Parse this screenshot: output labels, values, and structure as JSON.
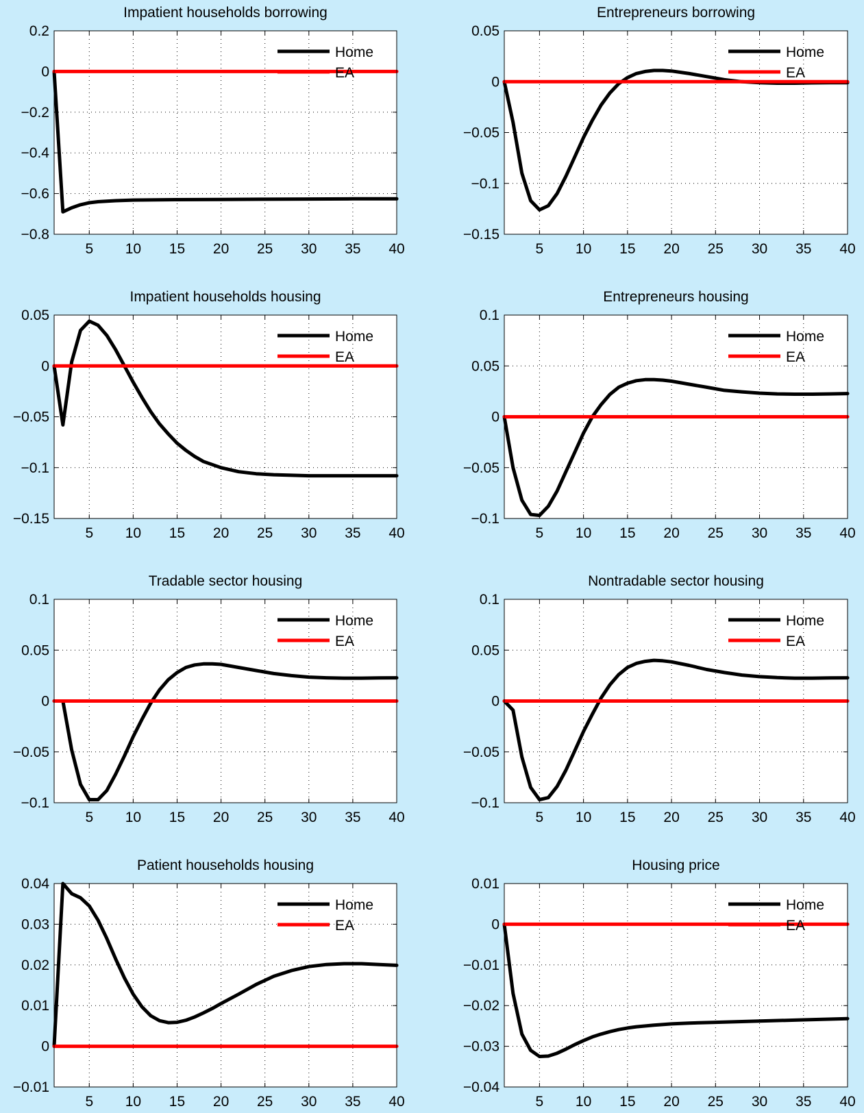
{
  "figure": {
    "background": "#c9ecfb",
    "home_color": "#000000",
    "ea_color": "#ff0000"
  },
  "chart_data": [
    {
      "type": "line",
      "title": "Impatient households borrowing",
      "xlim": [
        1,
        40
      ],
      "ylim": [
        -0.8,
        0.2
      ],
      "xticks": [
        5,
        10,
        15,
        20,
        25,
        30,
        35,
        40
      ],
      "xtick_labels": [
        "5",
        "10",
        "15",
        "20",
        "25",
        "30",
        "35",
        "40"
      ],
      "yticks": [
        -0.8,
        -0.6,
        -0.4,
        -0.2,
        0,
        0.2
      ],
      "ytick_labels": [
        "−0.8",
        "−0.6",
        "−0.4",
        "−0.2",
        "0",
        "0.2"
      ],
      "grid": true,
      "legend": "top-right",
      "series": [
        {
          "name": "Home",
          "color": "#000000",
          "x": [
            1,
            2,
            3,
            4,
            5,
            6,
            8,
            10,
            15,
            20,
            25,
            30,
            35,
            40
          ],
          "y": [
            0,
            -0.69,
            -0.67,
            -0.655,
            -0.645,
            -0.64,
            -0.635,
            -0.632,
            -0.63,
            -0.629,
            -0.628,
            -0.627,
            -0.626,
            -0.626
          ]
        },
        {
          "name": "EA",
          "color": "#ff0000",
          "x": [
            1,
            40
          ],
          "y": [
            0,
            0
          ]
        }
      ]
    },
    {
      "type": "line",
      "title": "Entrepreneurs borrowing",
      "xlim": [
        1,
        40
      ],
      "ylim": [
        -0.15,
        0.05
      ],
      "xticks": [
        5,
        10,
        15,
        20,
        25,
        30,
        35,
        40
      ],
      "xtick_labels": [
        "5",
        "10",
        "15",
        "20",
        "25",
        "30",
        "35",
        "40"
      ],
      "yticks": [
        -0.15,
        -0.1,
        -0.05,
        0,
        0.05
      ],
      "ytick_labels": [
        "−0.15",
        "−0.1",
        "−0.05",
        "0",
        "0.05"
      ],
      "grid": true,
      "legend": "top-right",
      "series": [
        {
          "name": "Home",
          "color": "#000000",
          "x": [
            1,
            2,
            3,
            4,
            5,
            6,
            7,
            8,
            9,
            10,
            11,
            12,
            13,
            14,
            15,
            16,
            17,
            18,
            19,
            20,
            22,
            24,
            26,
            28,
            30,
            32,
            34,
            36,
            38,
            40
          ],
          "y": [
            0,
            -0.04,
            -0.09,
            -0.117,
            -0.126,
            -0.122,
            -0.11,
            -0.093,
            -0.074,
            -0.055,
            -0.038,
            -0.023,
            -0.011,
            -0.002,
            0.004,
            0.008,
            0.01,
            0.011,
            0.011,
            0.0105,
            0.008,
            0.005,
            0.002,
            0.0,
            -0.001,
            -0.0015,
            -0.0015,
            -0.0012,
            -0.001,
            -0.001
          ]
        },
        {
          "name": "EA",
          "color": "#ff0000",
          "x": [
            1,
            40
          ],
          "y": [
            0,
            0
          ]
        }
      ]
    },
    {
      "type": "line",
      "title": "Impatient households housing",
      "xlim": [
        1,
        40
      ],
      "ylim": [
        -0.15,
        0.05
      ],
      "xticks": [
        5,
        10,
        15,
        20,
        25,
        30,
        35,
        40
      ],
      "xtick_labels": [
        "5",
        "10",
        "15",
        "20",
        "25",
        "30",
        "35",
        "40"
      ],
      "yticks": [
        -0.15,
        -0.1,
        -0.05,
        0,
        0.05
      ],
      "ytick_labels": [
        "−0.15",
        "−0.1",
        "−0.05",
        "0",
        "0.05"
      ],
      "grid": true,
      "legend": "top-right",
      "series": [
        {
          "name": "Home",
          "color": "#000000",
          "x": [
            1,
            2,
            3,
            4,
            5,
            6,
            7,
            8,
            9,
            10,
            11,
            12,
            13,
            14,
            15,
            16,
            17,
            18,
            19,
            20,
            22,
            24,
            26,
            28,
            30,
            32,
            34,
            36,
            38,
            40
          ],
          "y": [
            0,
            -0.058,
            0.004,
            0.035,
            0.044,
            0.04,
            0.03,
            0.016,
            0.0,
            -0.016,
            -0.031,
            -0.045,
            -0.057,
            -0.067,
            -0.076,
            -0.083,
            -0.089,
            -0.094,
            -0.097,
            -0.1,
            -0.104,
            -0.106,
            -0.107,
            -0.1075,
            -0.108,
            -0.108,
            -0.108,
            -0.108,
            -0.108,
            -0.108
          ]
        },
        {
          "name": "EA",
          "color": "#ff0000",
          "x": [
            1,
            40
          ],
          "y": [
            0,
            0
          ]
        }
      ]
    },
    {
      "type": "line",
      "title": "Entrepreneurs housing",
      "xlim": [
        1,
        40
      ],
      "ylim": [
        -0.1,
        0.1
      ],
      "xticks": [
        5,
        10,
        15,
        20,
        25,
        30,
        35,
        40
      ],
      "xtick_labels": [
        "5",
        "10",
        "15",
        "20",
        "25",
        "30",
        "35",
        "40"
      ],
      "yticks": [
        -0.1,
        -0.05,
        0,
        0.05,
        0.1
      ],
      "ytick_labels": [
        "−0.1",
        "−0.05",
        "0",
        "0.05",
        "0.1"
      ],
      "grid": true,
      "legend": "top-right",
      "series": [
        {
          "name": "Home",
          "color": "#000000",
          "x": [
            1,
            2,
            3,
            4,
            5,
            6,
            7,
            8,
            9,
            10,
            11,
            12,
            13,
            14,
            15,
            16,
            17,
            18,
            19,
            20,
            22,
            24,
            26,
            28,
            30,
            32,
            34,
            36,
            38,
            40
          ],
          "y": [
            0,
            -0.05,
            -0.082,
            -0.096,
            -0.097,
            -0.088,
            -0.073,
            -0.054,
            -0.035,
            -0.016,
            0.0,
            0.012,
            0.022,
            0.029,
            0.033,
            0.0355,
            0.0365,
            0.0365,
            0.036,
            0.035,
            0.032,
            0.029,
            0.026,
            0.0245,
            0.0232,
            0.0225,
            0.0222,
            0.0222,
            0.0225,
            0.0228
          ]
        },
        {
          "name": "EA",
          "color": "#ff0000",
          "x": [
            1,
            40
          ],
          "y": [
            0,
            0
          ]
        }
      ]
    },
    {
      "type": "line",
      "title": "Tradable sector housing",
      "xlim": [
        1,
        40
      ],
      "ylim": [
        -0.1,
        0.1
      ],
      "xticks": [
        5,
        10,
        15,
        20,
        25,
        30,
        35,
        40
      ],
      "xtick_labels": [
        "5",
        "10",
        "15",
        "20",
        "25",
        "30",
        "35",
        "40"
      ],
      "yticks": [
        -0.1,
        -0.05,
        0,
        0.05,
        0.1
      ],
      "ytick_labels": [
        "−0.1",
        "−0.05",
        "0",
        "0.05",
        "0.1"
      ],
      "grid": true,
      "legend": "top-right",
      "series": [
        {
          "name": "Home",
          "color": "#000000",
          "x": [
            1,
            2,
            3,
            4,
            5,
            6,
            7,
            8,
            9,
            10,
            11,
            12,
            13,
            14,
            15,
            16,
            17,
            18,
            19,
            20,
            22,
            24,
            26,
            28,
            30,
            32,
            34,
            36,
            38,
            40
          ],
          "y": [
            0,
            0,
            -0.048,
            -0.082,
            -0.097,
            -0.097,
            -0.088,
            -0.072,
            -0.054,
            -0.035,
            -0.018,
            -0.002,
            0.011,
            0.021,
            0.028,
            0.033,
            0.0355,
            0.0365,
            0.0365,
            0.036,
            0.033,
            0.03,
            0.027,
            0.025,
            0.0235,
            0.0228,
            0.0225,
            0.0225,
            0.0227,
            0.0228
          ]
        },
        {
          "name": "EA",
          "color": "#ff0000",
          "x": [
            1,
            40
          ],
          "y": [
            0,
            0
          ]
        }
      ]
    },
    {
      "type": "line",
      "title": "Nontradable sector housing",
      "xlim": [
        1,
        40
      ],
      "ylim": [
        -0.1,
        0.1
      ],
      "xticks": [
        5,
        10,
        15,
        20,
        25,
        30,
        35,
        40
      ],
      "xtick_labels": [
        "5",
        "10",
        "15",
        "20",
        "25",
        "30",
        "35",
        "40"
      ],
      "yticks": [
        -0.1,
        -0.05,
        0,
        0.05,
        0.1
      ],
      "ytick_labels": [
        "−0.1",
        "−0.05",
        "0",
        "0.05",
        "0.1"
      ],
      "grid": true,
      "legend": "top-right",
      "series": [
        {
          "name": "Home",
          "color": "#000000",
          "x": [
            1,
            2,
            3,
            4,
            5,
            6,
            7,
            8,
            9,
            10,
            11,
            12,
            13,
            14,
            15,
            16,
            17,
            18,
            19,
            20,
            22,
            24,
            26,
            28,
            30,
            32,
            34,
            36,
            38,
            40
          ],
          "y": [
            0,
            -0.009,
            -0.055,
            -0.085,
            -0.097,
            -0.095,
            -0.084,
            -0.068,
            -0.049,
            -0.03,
            -0.013,
            0.003,
            0.016,
            0.026,
            0.033,
            0.037,
            0.039,
            0.04,
            0.0395,
            0.0385,
            0.035,
            0.031,
            0.028,
            0.0255,
            0.024,
            0.023,
            0.0225,
            0.0225,
            0.0227,
            0.0228
          ]
        },
        {
          "name": "EA",
          "color": "#ff0000",
          "x": [
            1,
            40
          ],
          "y": [
            0,
            0
          ]
        }
      ]
    },
    {
      "type": "line",
      "title": "Patient households housing",
      "xlim": [
        1,
        40
      ],
      "ylim": [
        -0.01,
        0.04
      ],
      "xticks": [
        5,
        10,
        15,
        20,
        25,
        30,
        35,
        40
      ],
      "xtick_labels": [
        "5",
        "10",
        "15",
        "20",
        "25",
        "30",
        "35",
        "40"
      ],
      "yticks": [
        -0.01,
        0,
        0.01,
        0.02,
        0.03,
        0.04
      ],
      "ytick_labels": [
        "−0.01",
        "0",
        "0.01",
        "0.02",
        "0.03",
        "0.04"
      ],
      "grid": true,
      "legend": "top-right",
      "series": [
        {
          "name": "Home",
          "color": "#000000",
          "x": [
            1,
            2,
            3,
            4,
            5,
            6,
            7,
            8,
            9,
            10,
            11,
            12,
            13,
            14,
            15,
            16,
            17,
            18,
            19,
            20,
            22,
            24,
            26,
            28,
            30,
            32,
            34,
            36,
            38,
            40
          ],
          "y": [
            0,
            0.04,
            0.0375,
            0.0365,
            0.0345,
            0.031,
            0.0265,
            0.0215,
            0.0168,
            0.0128,
            0.0097,
            0.0075,
            0.0063,
            0.0058,
            0.0059,
            0.0064,
            0.0072,
            0.0082,
            0.0093,
            0.0105,
            0.0128,
            0.0152,
            0.0172,
            0.0186,
            0.0196,
            0.0201,
            0.0203,
            0.0203,
            0.0201,
            0.0199
          ]
        },
        {
          "name": "EA",
          "color": "#ff0000",
          "x": [
            1,
            40
          ],
          "y": [
            0,
            0
          ]
        }
      ]
    },
    {
      "type": "line",
      "title": "Housing price",
      "xlim": [
        1,
        40
      ],
      "ylim": [
        -0.04,
        0.01
      ],
      "xticks": [
        5,
        10,
        15,
        20,
        25,
        30,
        35,
        40
      ],
      "xtick_labels": [
        "5",
        "10",
        "15",
        "20",
        "25",
        "30",
        "35",
        "40"
      ],
      "yticks": [
        -0.04,
        -0.03,
        -0.02,
        -0.01,
        0,
        0.01
      ],
      "ytick_labels": [
        "−0.04",
        "−0.03",
        "−0.02",
        "−0.01",
        "0",
        "0.01"
      ],
      "grid": true,
      "legend": "top-right",
      "series": [
        {
          "name": "Home",
          "color": "#000000",
          "x": [
            1,
            2,
            3,
            4,
            5,
            6,
            7,
            8,
            9,
            10,
            11,
            12,
            13,
            14,
            15,
            16,
            18,
            20,
            22,
            25,
            30,
            35,
            40
          ],
          "y": [
            0,
            -0.017,
            -0.027,
            -0.031,
            -0.0325,
            -0.0324,
            -0.0317,
            -0.0307,
            -0.0296,
            -0.0286,
            -0.0277,
            -0.027,
            -0.0264,
            -0.0259,
            -0.0255,
            -0.0252,
            -0.0248,
            -0.0245,
            -0.0243,
            -0.0241,
            -0.0238,
            -0.0235,
            -0.0232
          ]
        },
        {
          "name": "EA",
          "color": "#ff0000",
          "x": [
            1,
            40
          ],
          "y": [
            0,
            0
          ]
        }
      ]
    }
  ]
}
